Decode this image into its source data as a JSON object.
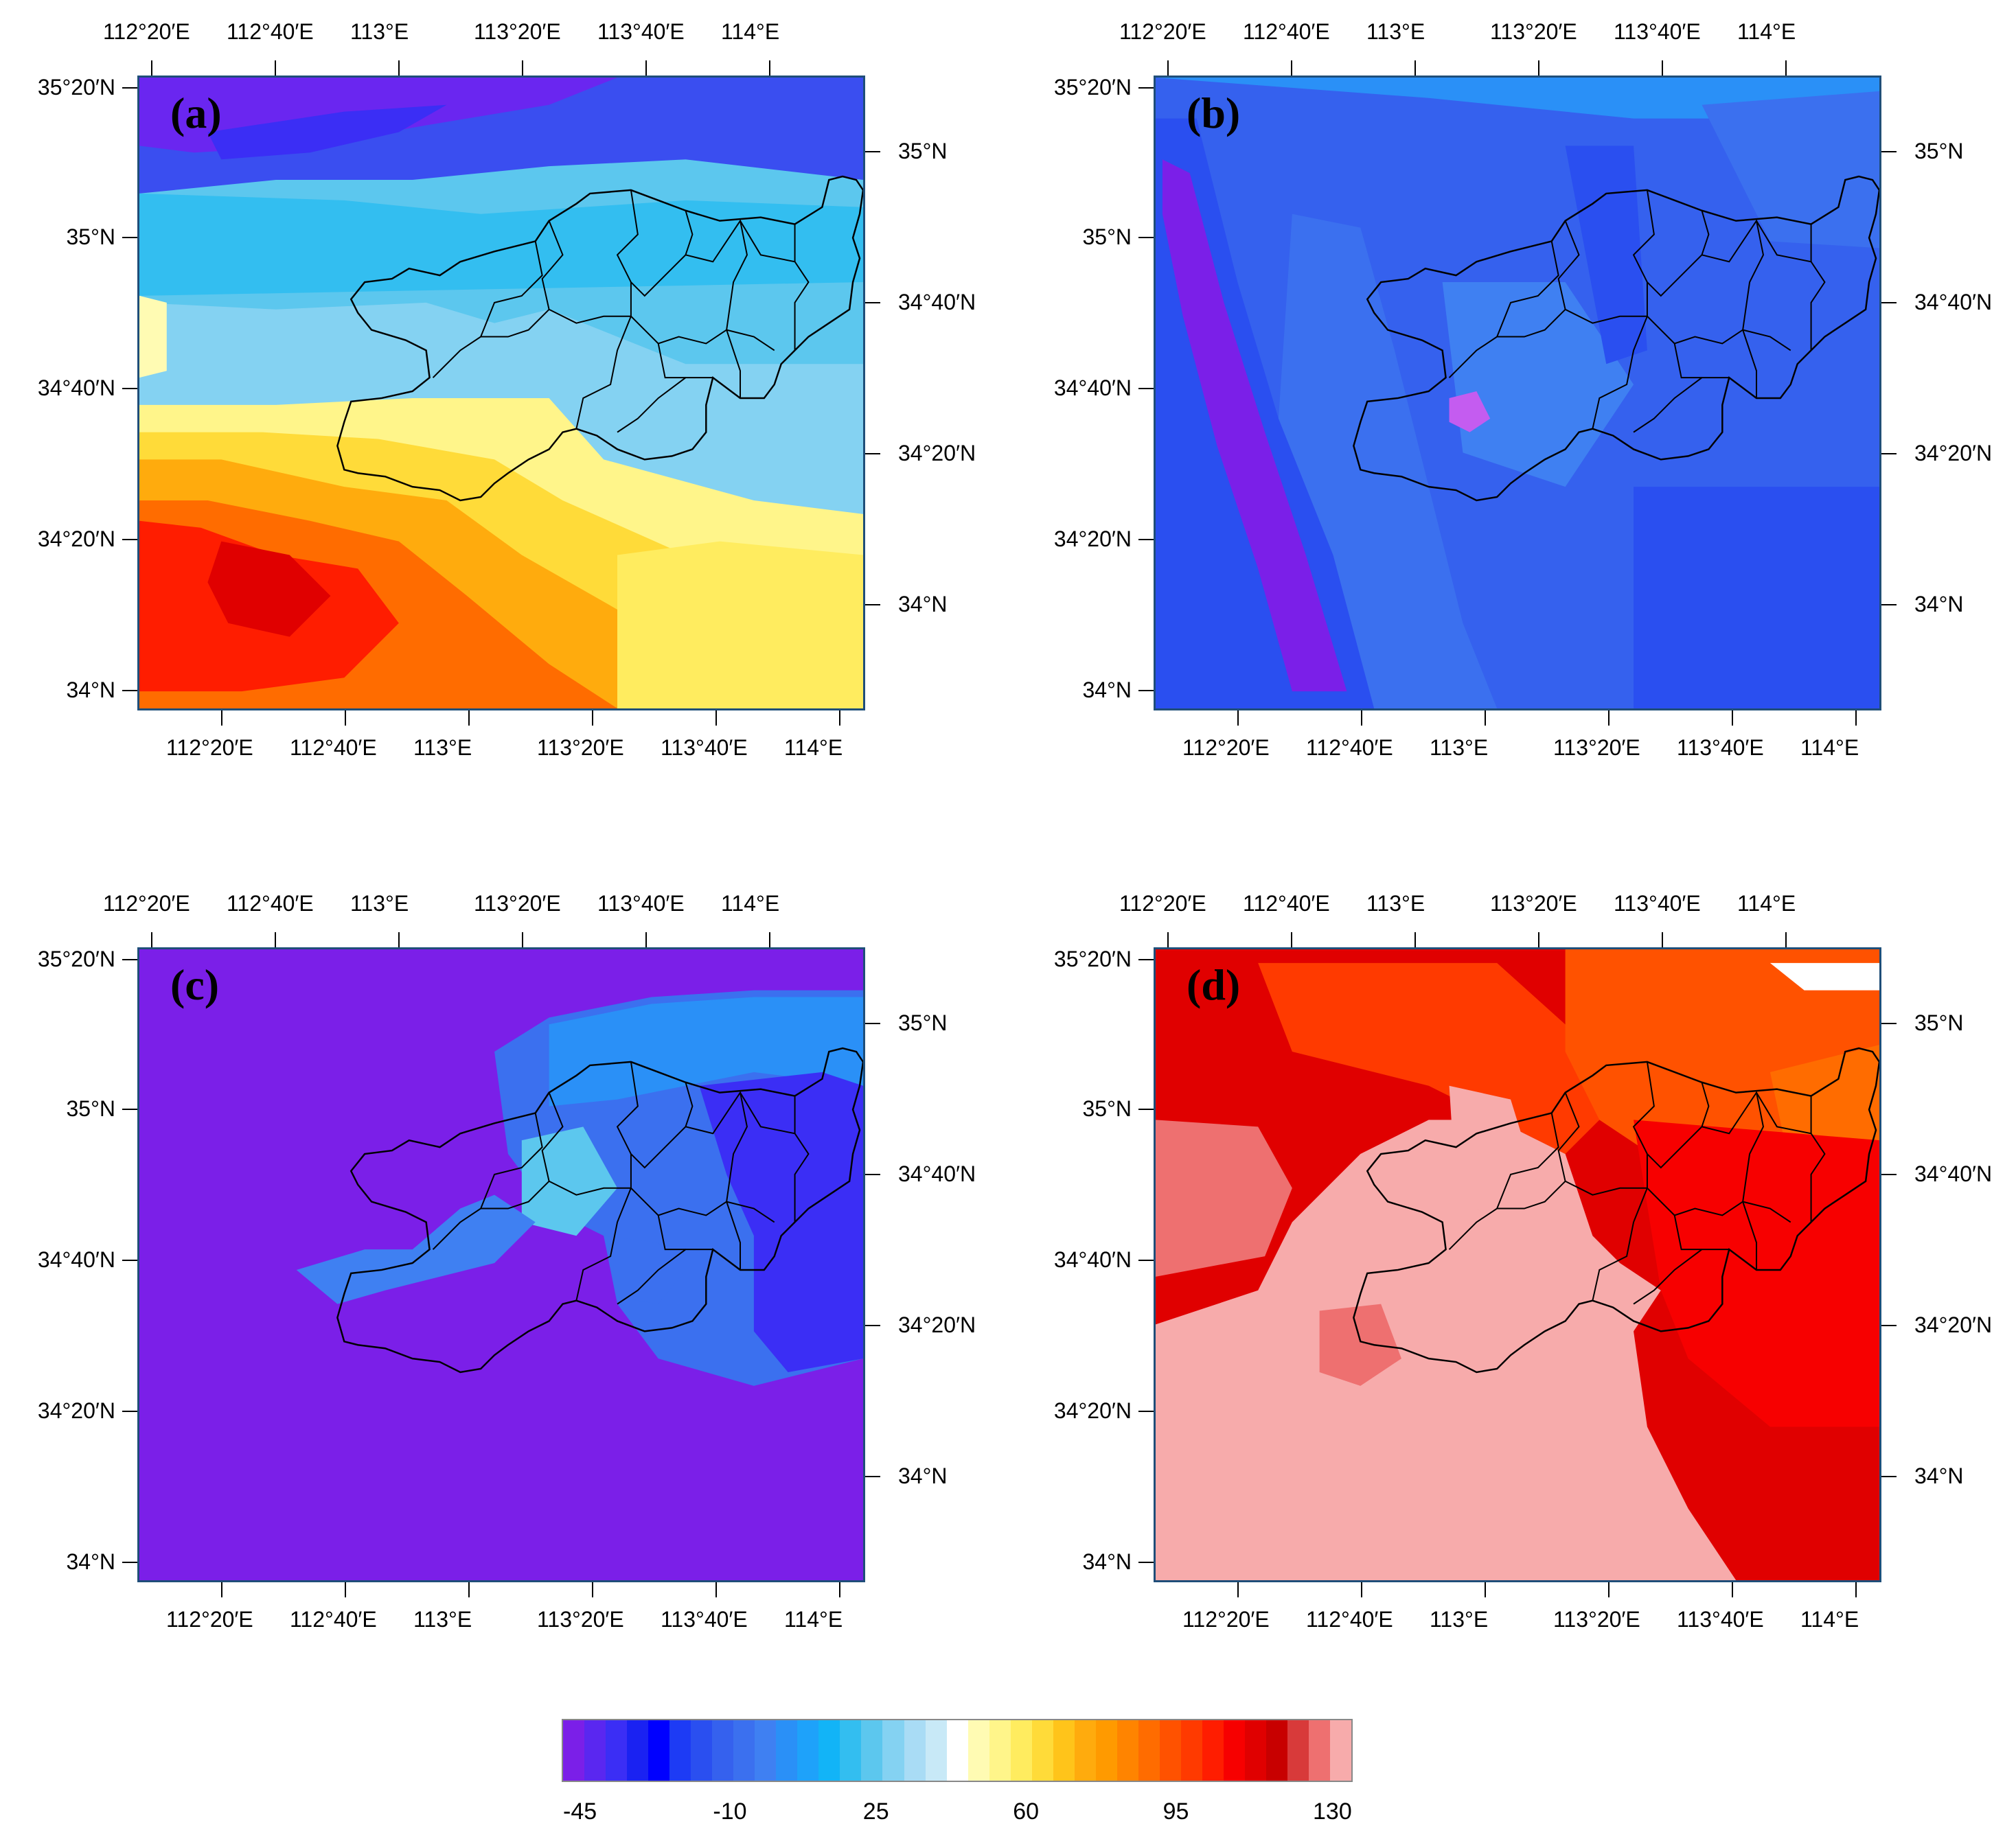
{
  "figure": {
    "panels": [
      {
        "label": "(a)",
        "scheme": "a"
      },
      {
        "label": "(b)",
        "scheme": "b"
      },
      {
        "label": "(c)",
        "scheme": "c"
      },
      {
        "label": "(d)",
        "scheme": "d"
      }
    ],
    "axes": {
      "top_lon_labels": [
        "112°20′E",
        "112°40′E",
        "113°E",
        "113°20′E",
        "113°40′E",
        "114°E"
      ],
      "bottom_lon_labels": [
        "112°20′E",
        "112°40′E",
        "113°E",
        "113°20′E",
        "113°40′E",
        "114°E"
      ],
      "left_lat_labels": [
        "35°20′N",
        "35°N",
        "34°40′N",
        "34°20′N",
        "34°N"
      ],
      "right_lat_labels": [
        "35°N",
        "34°40′N",
        "34°20′N",
        "34°N"
      ]
    },
    "colorbar": {
      "tick_labels": [
        "-45",
        "-10",
        "25",
        "60",
        "95",
        "130"
      ],
      "colors": [
        "#7b1fe8",
        "#5a27f0",
        "#3b2ef5",
        "#1a22f2",
        "#0000ff",
        "#1d3bf5",
        "#2a4ff0",
        "#3561ee",
        "#3b70ef",
        "#3f80f2",
        "#2a90f7",
        "#1ea2fa",
        "#12b4f7",
        "#33bef0",
        "#5cc7ee",
        "#84d2f2",
        "#a9dcf5",
        "#c8e9f7",
        "#ffffff",
        "#fffbb3",
        "#fff58a",
        "#ffec5f",
        "#ffdb39",
        "#ffc41a",
        "#ffab0d",
        "#ff9a00",
        "#ff8400",
        "#ff6c00",
        "#ff5200",
        "#ff3a00",
        "#ff1d00",
        "#f70000",
        "#e00000",
        "#c80000",
        "#d83a3a",
        "#ee7070",
        "#f7abab"
      ]
    }
  }
}
